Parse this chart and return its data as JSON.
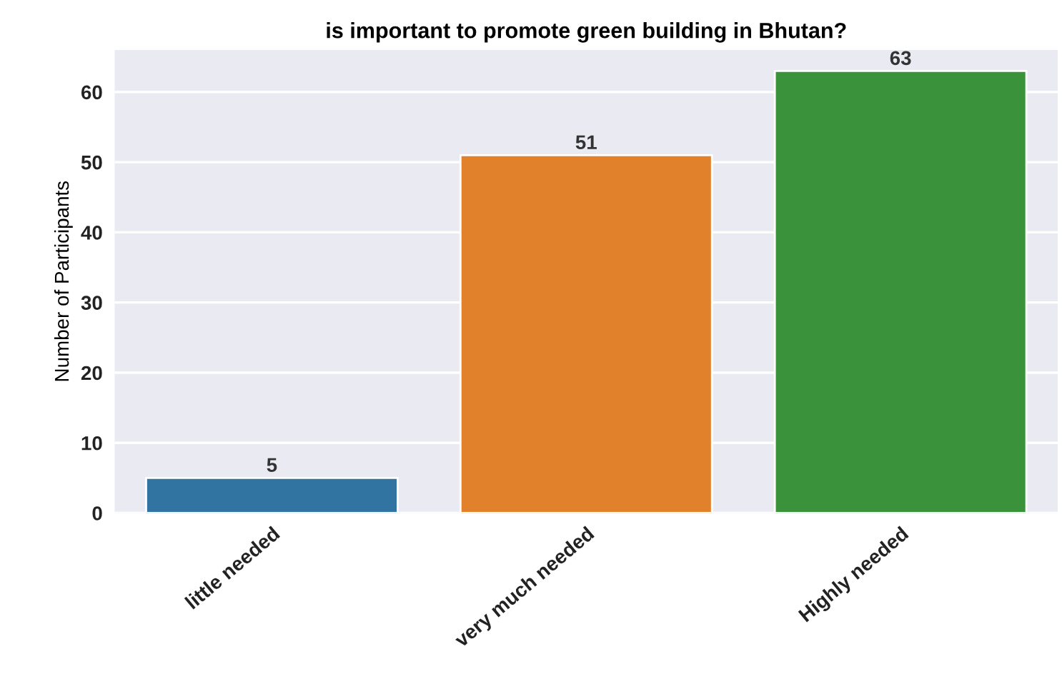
{
  "chart_data": {
    "type": "bar",
    "title": "is important to promote green building in Bhutan?",
    "ylabel": "Number of Participants",
    "categories": [
      "little needed",
      "very much needed",
      "Highly needed"
    ],
    "values": [
      5,
      51,
      63
    ],
    "colors": [
      "#3274a1",
      "#e1812c",
      "#3a923a"
    ],
    "ylim": [
      0,
      66
    ],
    "yticks": [
      0,
      10,
      20,
      30,
      40,
      50,
      60
    ],
    "grid": "y",
    "data_labels": true
  }
}
